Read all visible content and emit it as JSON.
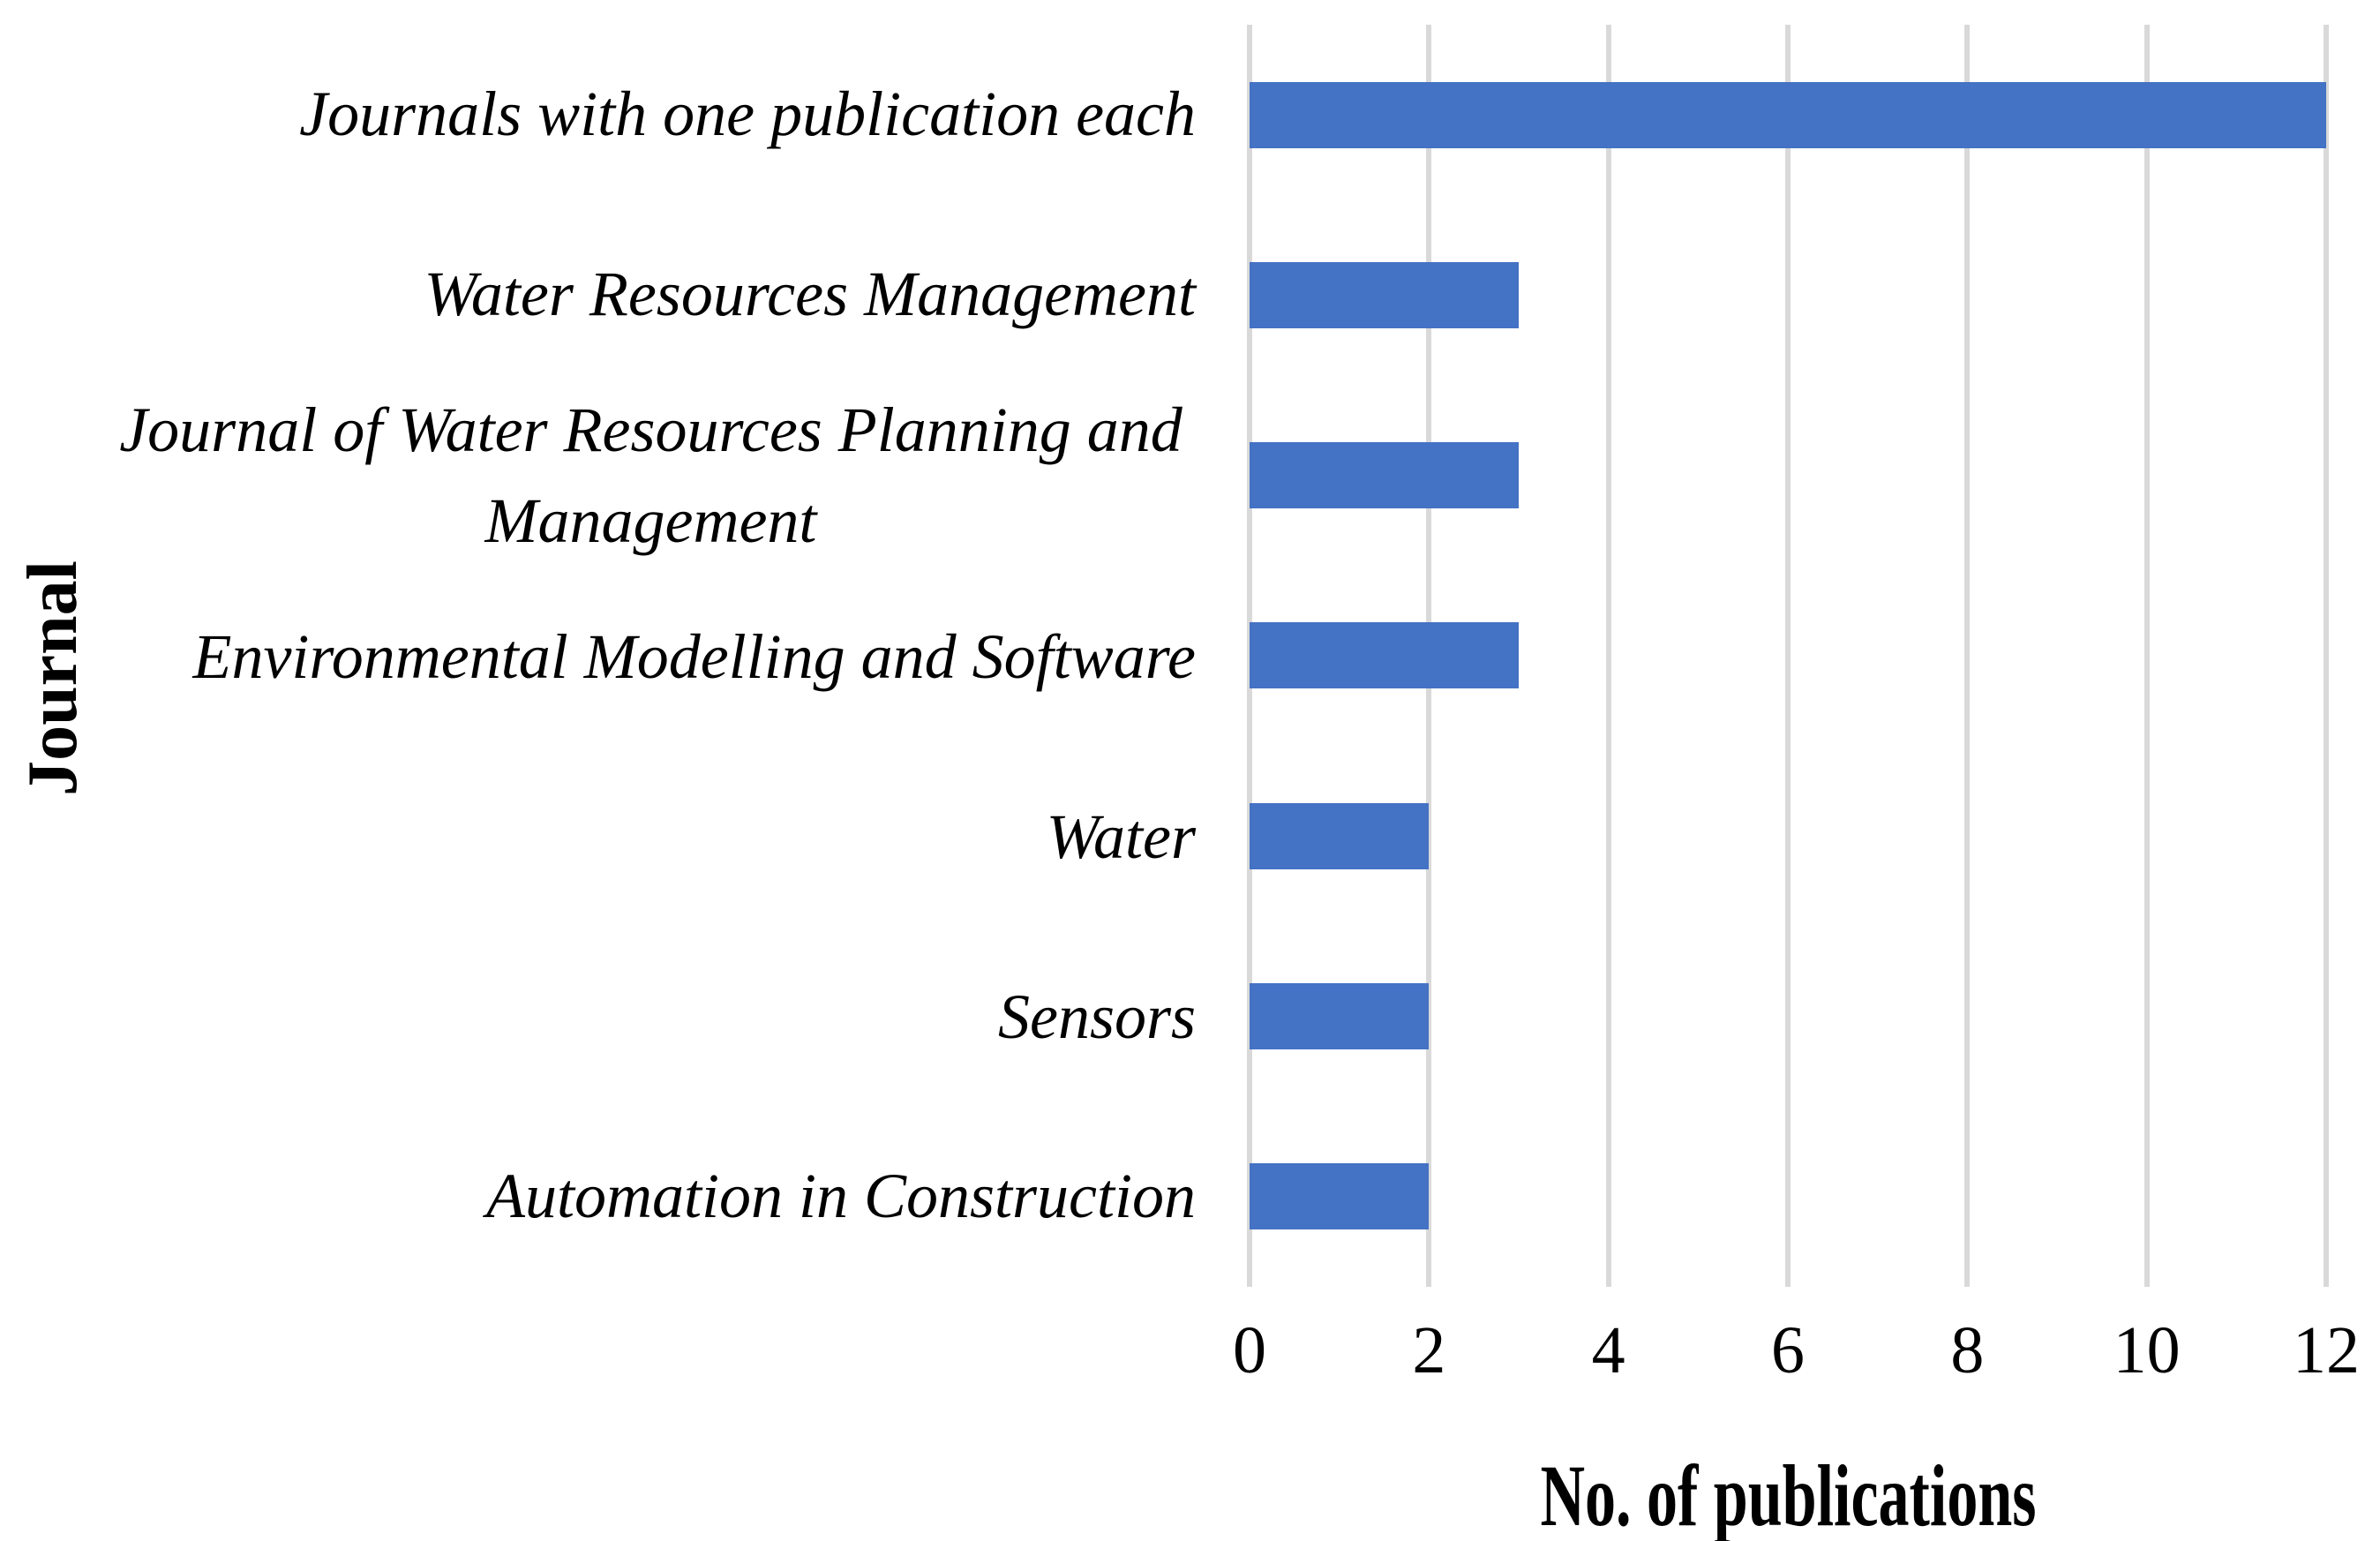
{
  "chart_data": {
    "type": "bar",
    "orientation": "horizontal",
    "categories": [
      "Journals with one publication each",
      "Water Resources Management",
      "Journal of Water Resources Planning and\nManagement",
      "Environmental Modelling and Software",
      "Water",
      "Sensors",
      "Automation in Construction"
    ],
    "values": [
      12,
      3,
      3,
      3,
      2,
      2,
      2
    ],
    "xlabel": "No. of publications",
    "ylabel": "Journal",
    "xlim": [
      0,
      12
    ],
    "xticks": [
      "0",
      "2",
      "4",
      "6",
      "8",
      "10",
      "12"
    ],
    "grid": "vertical gridlines at every x tick, no horizontal gridlines, no axis lines",
    "legend": "none",
    "bar_color": "#4472C4",
    "gridline_color": "#D9D9D9",
    "background_color": "#FFFFFF",
    "text_color": "#000000"
  }
}
